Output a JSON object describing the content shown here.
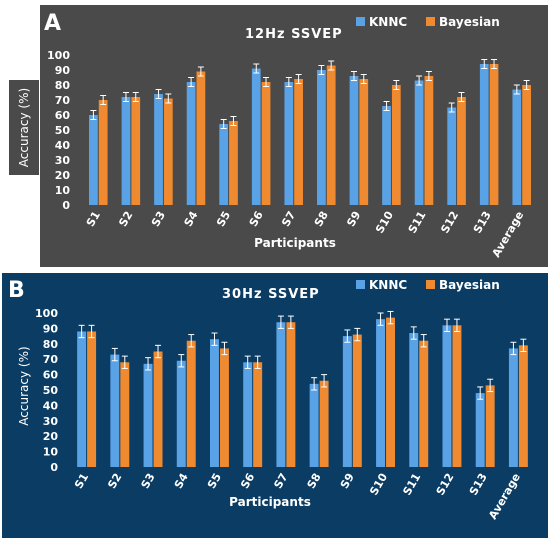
{
  "colors": {
    "panel_a_bg": "#4a4a4a",
    "panel_b_bg": "#0b3c63",
    "knnc": "#5aa2e6",
    "bayesian": "#f08a30",
    "text": "#ffffff",
    "error_bar": "#ffffff"
  },
  "chart_data": [
    {
      "type": "bar",
      "panel_letter": "A",
      "title": "12Hz SSVEP",
      "xlabel": "Participants",
      "ylabel": "Accuracy (%)",
      "ylim": [
        0,
        100
      ],
      "yticks": [
        0,
        10,
        20,
        30,
        40,
        50,
        60,
        70,
        80,
        90,
        100
      ],
      "legend_position": "top-right",
      "grid": false,
      "categories": [
        "S1",
        "S2",
        "S3",
        "S4",
        "S5",
        "S6",
        "S7",
        "S8",
        "S9",
        "S10",
        "S11",
        "S12",
        "S13",
        "Average"
      ],
      "series": [
        {
          "name": "KNNC",
          "color": "#5aa2e6",
          "values": [
            60,
            72,
            74,
            82,
            54,
            91,
            82,
            90,
            86,
            66,
            83,
            65,
            94,
            77
          ],
          "errors": [
            3,
            3,
            3,
            3,
            3,
            3,
            3,
            3,
            3,
            3,
            3,
            3,
            3,
            3
          ]
        },
        {
          "name": "Bayesian",
          "color": "#f08a30",
          "values": [
            70,
            72,
            71,
            89,
            56,
            82,
            84,
            93,
            84,
            80,
            86,
            72,
            94,
            80
          ],
          "errors": [
            3,
            3,
            3,
            3,
            3,
            3,
            3,
            3,
            3,
            3,
            3,
            3,
            3,
            3
          ]
        }
      ]
    },
    {
      "type": "bar",
      "panel_letter": "B",
      "title": "30Hz SSVEP",
      "xlabel": "Participants",
      "ylabel": "Accuracy (%)",
      "ylim": [
        0,
        100
      ],
      "yticks": [
        0,
        10,
        20,
        30,
        40,
        50,
        60,
        70,
        80,
        90,
        100
      ],
      "legend_position": "top-right",
      "grid": false,
      "categories": [
        "S1",
        "S2",
        "S3",
        "S4",
        "S5",
        "S6",
        "S7",
        "S8",
        "S9",
        "S10",
        "S11",
        "S12",
        "S13",
        "Average"
      ],
      "series": [
        {
          "name": "KNNC",
          "color": "#5aa2e6",
          "values": [
            88,
            73,
            67,
            69,
            83,
            68,
            94,
            54,
            85,
            96,
            87,
            92,
            48,
            77
          ],
          "errors": [
            4,
            4,
            4,
            4,
            4,
            4,
            4,
            4,
            4,
            4,
            4,
            4,
            4,
            4
          ]
        },
        {
          "name": "Bayesian",
          "color": "#f08a30",
          "values": [
            88,
            68,
            75,
            82,
            77,
            68,
            94,
            56,
            86,
            97,
            82,
            92,
            53,
            79
          ],
          "errors": [
            4,
            4,
            4,
            4,
            4,
            4,
            4,
            4,
            4,
            4,
            4,
            4,
            4,
            4
          ]
        }
      ]
    }
  ]
}
